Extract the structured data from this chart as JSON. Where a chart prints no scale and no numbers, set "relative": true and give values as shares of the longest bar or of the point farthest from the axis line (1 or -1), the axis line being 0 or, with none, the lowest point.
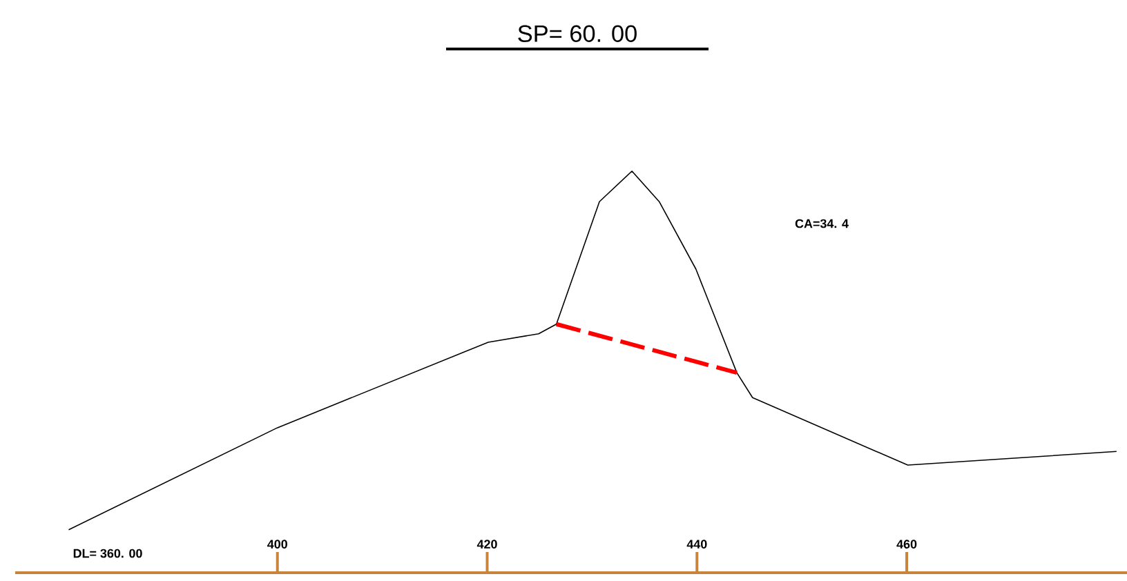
{
  "chart_data": {
    "type": "line",
    "title": "SP= 60. 00",
    "relative": true,
    "annotations": [
      "CA=34. 4",
      "DL= 360. 00"
    ],
    "xlim": [
      375,
      481
    ],
    "xticks": [
      400,
      420,
      440,
      460
    ],
    "grid": false,
    "marker": "none",
    "series": [
      {
        "color": "#000000",
        "line_style": "solid",
        "x": [
          380.1,
          400,
          420.1,
          424.9,
          426.6,
          430.7,
          433.8,
          436.4,
          439.9,
          443.8,
          445.3,
          460.1,
          480
        ],
        "values": [
          0.107,
          0.361,
          0.574,
          0.595,
          0.619,
          0.924,
          1,
          0.924,
          0.756,
          0.498,
          0.436,
          0.268,
          0.302
        ]
      },
      {
        "color": "#ff0000",
        "line_style": "dashed",
        "x": [
          426.6,
          443.8
        ],
        "values": [
          0.619,
          0.498
        ]
      }
    ]
  }
}
